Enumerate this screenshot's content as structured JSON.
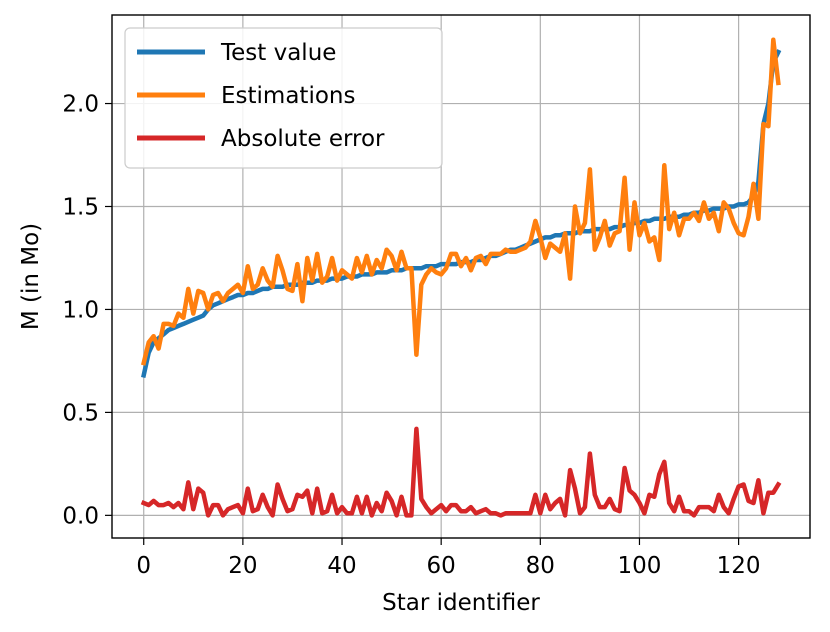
{
  "chart_data": {
    "type": "line",
    "xlabel": "Star identifier",
    "ylabel": "M (in Mo)",
    "xlim": [
      -6.4,
      134.4
    ],
    "ylim": [
      -0.11,
      2.43
    ],
    "xticks": [
      0,
      20,
      40,
      60,
      80,
      100,
      120
    ],
    "yticks": [
      0.0,
      0.5,
      1.0,
      1.5,
      2.0
    ],
    "ytick_labels": [
      "0.0",
      "0.5",
      "1.0",
      "1.5",
      "2.0"
    ],
    "grid": true,
    "legend": "top-left",
    "series": [
      {
        "name": "Test value",
        "color": "#1f77b4",
        "x": [
          0,
          1,
          2,
          3,
          4,
          5,
          6,
          7,
          8,
          9,
          10,
          11,
          12,
          13,
          14,
          15,
          16,
          17,
          18,
          19,
          20,
          21,
          22,
          23,
          24,
          25,
          26,
          27,
          28,
          29,
          30,
          31,
          32,
          33,
          34,
          35,
          36,
          37,
          38,
          39,
          40,
          41,
          42,
          43,
          44,
          45,
          46,
          47,
          48,
          49,
          50,
          51,
          52,
          53,
          54,
          55,
          56,
          57,
          58,
          59,
          60,
          61,
          62,
          63,
          64,
          65,
          66,
          67,
          68,
          69,
          70,
          71,
          72,
          73,
          74,
          75,
          76,
          77,
          78,
          79,
          80,
          81,
          82,
          83,
          84,
          85,
          86,
          87,
          88,
          89,
          90,
          91,
          92,
          93,
          94,
          95,
          96,
          97,
          98,
          99,
          100,
          101,
          102,
          103,
          104,
          105,
          106,
          107,
          108,
          109,
          110,
          111,
          112,
          113,
          114,
          115,
          116,
          117,
          118,
          119,
          120,
          121,
          122,
          123,
          124,
          125,
          126,
          127,
          128
        ],
        "y": [
          0.68,
          0.79,
          0.84,
          0.86,
          0.88,
          0.9,
          0.91,
          0.92,
          0.93,
          0.94,
          0.95,
          0.96,
          0.97,
          1.0,
          1.02,
          1.03,
          1.04,
          1.05,
          1.06,
          1.07,
          1.07,
          1.08,
          1.08,
          1.09,
          1.1,
          1.1,
          1.11,
          1.11,
          1.11,
          1.12,
          1.12,
          1.12,
          1.13,
          1.13,
          1.13,
          1.14,
          1.14,
          1.14,
          1.15,
          1.15,
          1.15,
          1.16,
          1.16,
          1.16,
          1.17,
          1.17,
          1.17,
          1.18,
          1.18,
          1.18,
          1.19,
          1.19,
          1.19,
          1.2,
          1.2,
          1.2,
          1.2,
          1.21,
          1.21,
          1.21,
          1.22,
          1.22,
          1.22,
          1.22,
          1.23,
          1.23,
          1.23,
          1.24,
          1.24,
          1.25,
          1.26,
          1.26,
          1.27,
          1.28,
          1.29,
          1.29,
          1.3,
          1.31,
          1.32,
          1.33,
          1.34,
          1.35,
          1.35,
          1.36,
          1.36,
          1.37,
          1.37,
          1.37,
          1.38,
          1.38,
          1.38,
          1.39,
          1.39,
          1.39,
          1.39,
          1.4,
          1.4,
          1.41,
          1.41,
          1.42,
          1.42,
          1.43,
          1.43,
          1.44,
          1.44,
          1.44,
          1.45,
          1.45,
          1.45,
          1.46,
          1.46,
          1.47,
          1.47,
          1.48,
          1.48,
          1.49,
          1.49,
          1.49,
          1.5,
          1.5,
          1.51,
          1.51,
          1.52,
          1.55,
          1.62,
          1.9,
          2.0,
          2.2,
          2.25
        ]
      },
      {
        "name": "Estimations",
        "color": "#ff7f0e",
        "x": [
          0,
          1,
          2,
          3,
          4,
          5,
          6,
          7,
          8,
          9,
          10,
          11,
          12,
          13,
          14,
          15,
          16,
          17,
          18,
          19,
          20,
          21,
          22,
          23,
          24,
          25,
          26,
          27,
          28,
          29,
          30,
          31,
          32,
          33,
          34,
          35,
          36,
          37,
          38,
          39,
          40,
          41,
          42,
          43,
          44,
          45,
          46,
          47,
          48,
          49,
          50,
          51,
          52,
          53,
          54,
          55,
          56,
          57,
          58,
          59,
          60,
          61,
          62,
          63,
          64,
          65,
          66,
          67,
          68,
          69,
          70,
          71,
          72,
          73,
          74,
          75,
          76,
          77,
          78,
          79,
          80,
          81,
          82,
          83,
          84,
          85,
          86,
          87,
          88,
          89,
          90,
          91,
          92,
          93,
          94,
          95,
          96,
          97,
          98,
          99,
          100,
          101,
          102,
          103,
          104,
          105,
          106,
          107,
          108,
          109,
          110,
          111,
          112,
          113,
          114,
          115,
          116,
          117,
          118,
          119,
          120,
          121,
          122,
          123,
          124,
          125,
          126,
          127,
          128
        ],
        "y": [
          0.74,
          0.84,
          0.87,
          0.81,
          0.93,
          0.93,
          0.92,
          0.98,
          0.96,
          1.1,
          0.98,
          1.09,
          1.08,
          1.0,
          1.07,
          1.08,
          1.04,
          1.08,
          1.1,
          1.12,
          1.08,
          1.21,
          1.1,
          1.12,
          1.2,
          1.14,
          1.11,
          1.26,
          1.19,
          1.1,
          1.09,
          1.22,
          1.04,
          1.25,
          1.14,
          1.27,
          1.13,
          1.16,
          1.25,
          1.14,
          1.19,
          1.17,
          1.15,
          1.25,
          1.18,
          1.26,
          1.17,
          1.24,
          1.2,
          1.29,
          1.26,
          1.19,
          1.28,
          1.2,
          1.2,
          0.78,
          1.12,
          1.17,
          1.2,
          1.18,
          1.17,
          1.2,
          1.27,
          1.27,
          1.21,
          1.25,
          1.19,
          1.25,
          1.26,
          1.22,
          1.27,
          1.27,
          1.27,
          1.29,
          1.28,
          1.28,
          1.29,
          1.3,
          1.33,
          1.43,
          1.35,
          1.25,
          1.32,
          1.3,
          1.28,
          1.37,
          1.15,
          1.5,
          1.37,
          1.42,
          1.68,
          1.29,
          1.35,
          1.43,
          1.31,
          1.37,
          1.38,
          1.64,
          1.29,
          1.52,
          1.36,
          1.42,
          1.33,
          1.35,
          1.24,
          1.7,
          1.39,
          1.47,
          1.36,
          1.44,
          1.44,
          1.47,
          1.43,
          1.52,
          1.44,
          1.47,
          1.38,
          1.52,
          1.49,
          1.42,
          1.37,
          1.36,
          1.45,
          1.61,
          1.44,
          1.9,
          1.89,
          2.31,
          2.1
        ]
      },
      {
        "name": "Absolute error",
        "color": "#d62728",
        "x": [
          0,
          1,
          2,
          3,
          4,
          5,
          6,
          7,
          8,
          9,
          10,
          11,
          12,
          13,
          14,
          15,
          16,
          17,
          18,
          19,
          20,
          21,
          22,
          23,
          24,
          25,
          26,
          27,
          28,
          29,
          30,
          31,
          32,
          33,
          34,
          35,
          36,
          37,
          38,
          39,
          40,
          41,
          42,
          43,
          44,
          45,
          46,
          47,
          48,
          49,
          50,
          51,
          52,
          53,
          54,
          55,
          56,
          57,
          58,
          59,
          60,
          61,
          62,
          63,
          64,
          65,
          66,
          67,
          68,
          69,
          70,
          71,
          72,
          73,
          74,
          75,
          76,
          77,
          78,
          79,
          80,
          81,
          82,
          83,
          84,
          85,
          86,
          87,
          88,
          89,
          90,
          91,
          92,
          93,
          94,
          95,
          96,
          97,
          98,
          99,
          100,
          101,
          102,
          103,
          104,
          105,
          106,
          107,
          108,
          109,
          110,
          111,
          112,
          113,
          114,
          115,
          116,
          117,
          118,
          119,
          120,
          121,
          122,
          123,
          124,
          125,
          126,
          127,
          128
        ],
        "y": [
          0.06,
          0.05,
          0.07,
          0.05,
          0.05,
          0.06,
          0.04,
          0.06,
          0.03,
          0.16,
          0.03,
          0.13,
          0.11,
          0.0,
          0.05,
          0.05,
          0.0,
          0.03,
          0.04,
          0.05,
          0.01,
          0.13,
          0.02,
          0.03,
          0.1,
          0.04,
          0.0,
          0.15,
          0.08,
          0.02,
          0.03,
          0.1,
          0.09,
          0.12,
          0.01,
          0.13,
          0.01,
          0.02,
          0.1,
          0.01,
          0.04,
          0.01,
          0.01,
          0.09,
          0.01,
          0.09,
          0.0,
          0.06,
          0.02,
          0.11,
          0.07,
          0.0,
          0.09,
          0.0,
          0.0,
          0.42,
          0.08,
          0.04,
          0.01,
          0.03,
          0.05,
          0.02,
          0.05,
          0.05,
          0.02,
          0.02,
          0.04,
          0.01,
          0.02,
          0.03,
          0.01,
          0.01,
          0.0,
          0.01,
          0.01,
          0.01,
          0.01,
          0.01,
          0.01,
          0.1,
          0.01,
          0.1,
          0.03,
          0.06,
          0.08,
          0.0,
          0.22,
          0.13,
          0.01,
          0.04,
          0.3,
          0.1,
          0.04,
          0.04,
          0.08,
          0.03,
          0.02,
          0.23,
          0.12,
          0.1,
          0.06,
          0.01,
          0.1,
          0.09,
          0.2,
          0.26,
          0.06,
          0.02,
          0.09,
          0.02,
          0.02,
          0.0,
          0.04,
          0.04,
          0.04,
          0.02,
          0.1,
          0.04,
          0.01,
          0.08,
          0.14,
          0.15,
          0.07,
          0.06,
          0.17,
          0.01,
          0.11,
          0.11,
          0.15
        ]
      }
    ]
  }
}
